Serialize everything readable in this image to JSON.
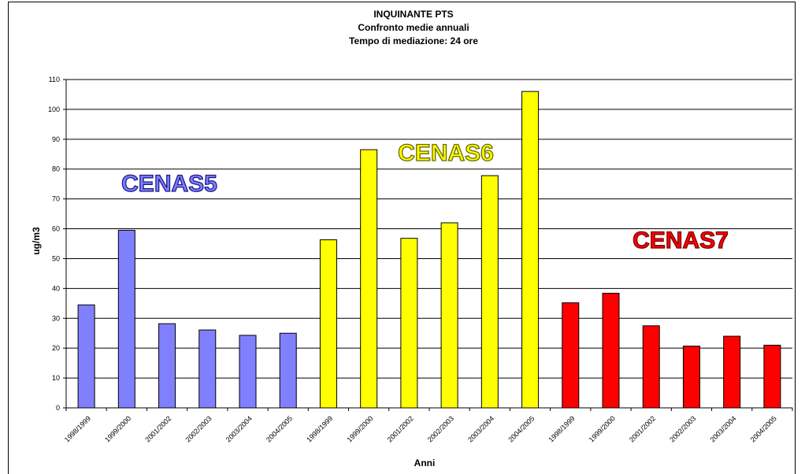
{
  "chart_data": {
    "type": "bar",
    "title": [
      "INQUINANTE PTS",
      "Confronto medie annuali",
      "Tempo di mediazione: 24 ore"
    ],
    "xlabel": "Anni",
    "ylabel": "ug/m3",
    "ylim": [
      0,
      110
    ],
    "yticks": [
      0,
      10,
      20,
      30,
      40,
      50,
      60,
      70,
      80,
      90,
      100,
      110
    ],
    "grid": true,
    "categories": [
      "1998/1999",
      "1999/2000",
      "2001/2002",
      "2002/2003",
      "2003/2004",
      "2004/2005",
      "1998/1999",
      "1999/2000",
      "2001/2002",
      "2002/2003",
      "2003/2004",
      "2004/2005",
      "1998/1999",
      "1999/2000",
      "2001/2002",
      "2002/2003",
      "2003/2004",
      "2004/2005"
    ],
    "values": [
      34.5,
      59.5,
      28.2,
      26.1,
      24.3,
      25.0,
      56.3,
      86.5,
      56.8,
      62.0,
      77.8,
      106.0,
      35.2,
      38.4,
      27.5,
      20.7,
      24.0,
      21.0
    ],
    "bar_colors": [
      "#8080ff",
      "#8080ff",
      "#8080ff",
      "#8080ff",
      "#8080ff",
      "#8080ff",
      "#ffff00",
      "#ffff00",
      "#ffff00",
      "#ffff00",
      "#ffff00",
      "#ffff00",
      "#ff0000",
      "#ff0000",
      "#ff0000",
      "#ff0000",
      "#ff0000",
      "#ff0000"
    ],
    "group_labels": [
      {
        "text": "CENAS5",
        "color": "#8080ff",
        "stroke": "#1a1a8c"
      },
      {
        "text": "CENAS6",
        "color": "#ffff00",
        "stroke": "#6b6b00"
      },
      {
        "text": "CENAS7",
        "color": "#ff0000",
        "stroke": "#7a0000"
      }
    ]
  }
}
